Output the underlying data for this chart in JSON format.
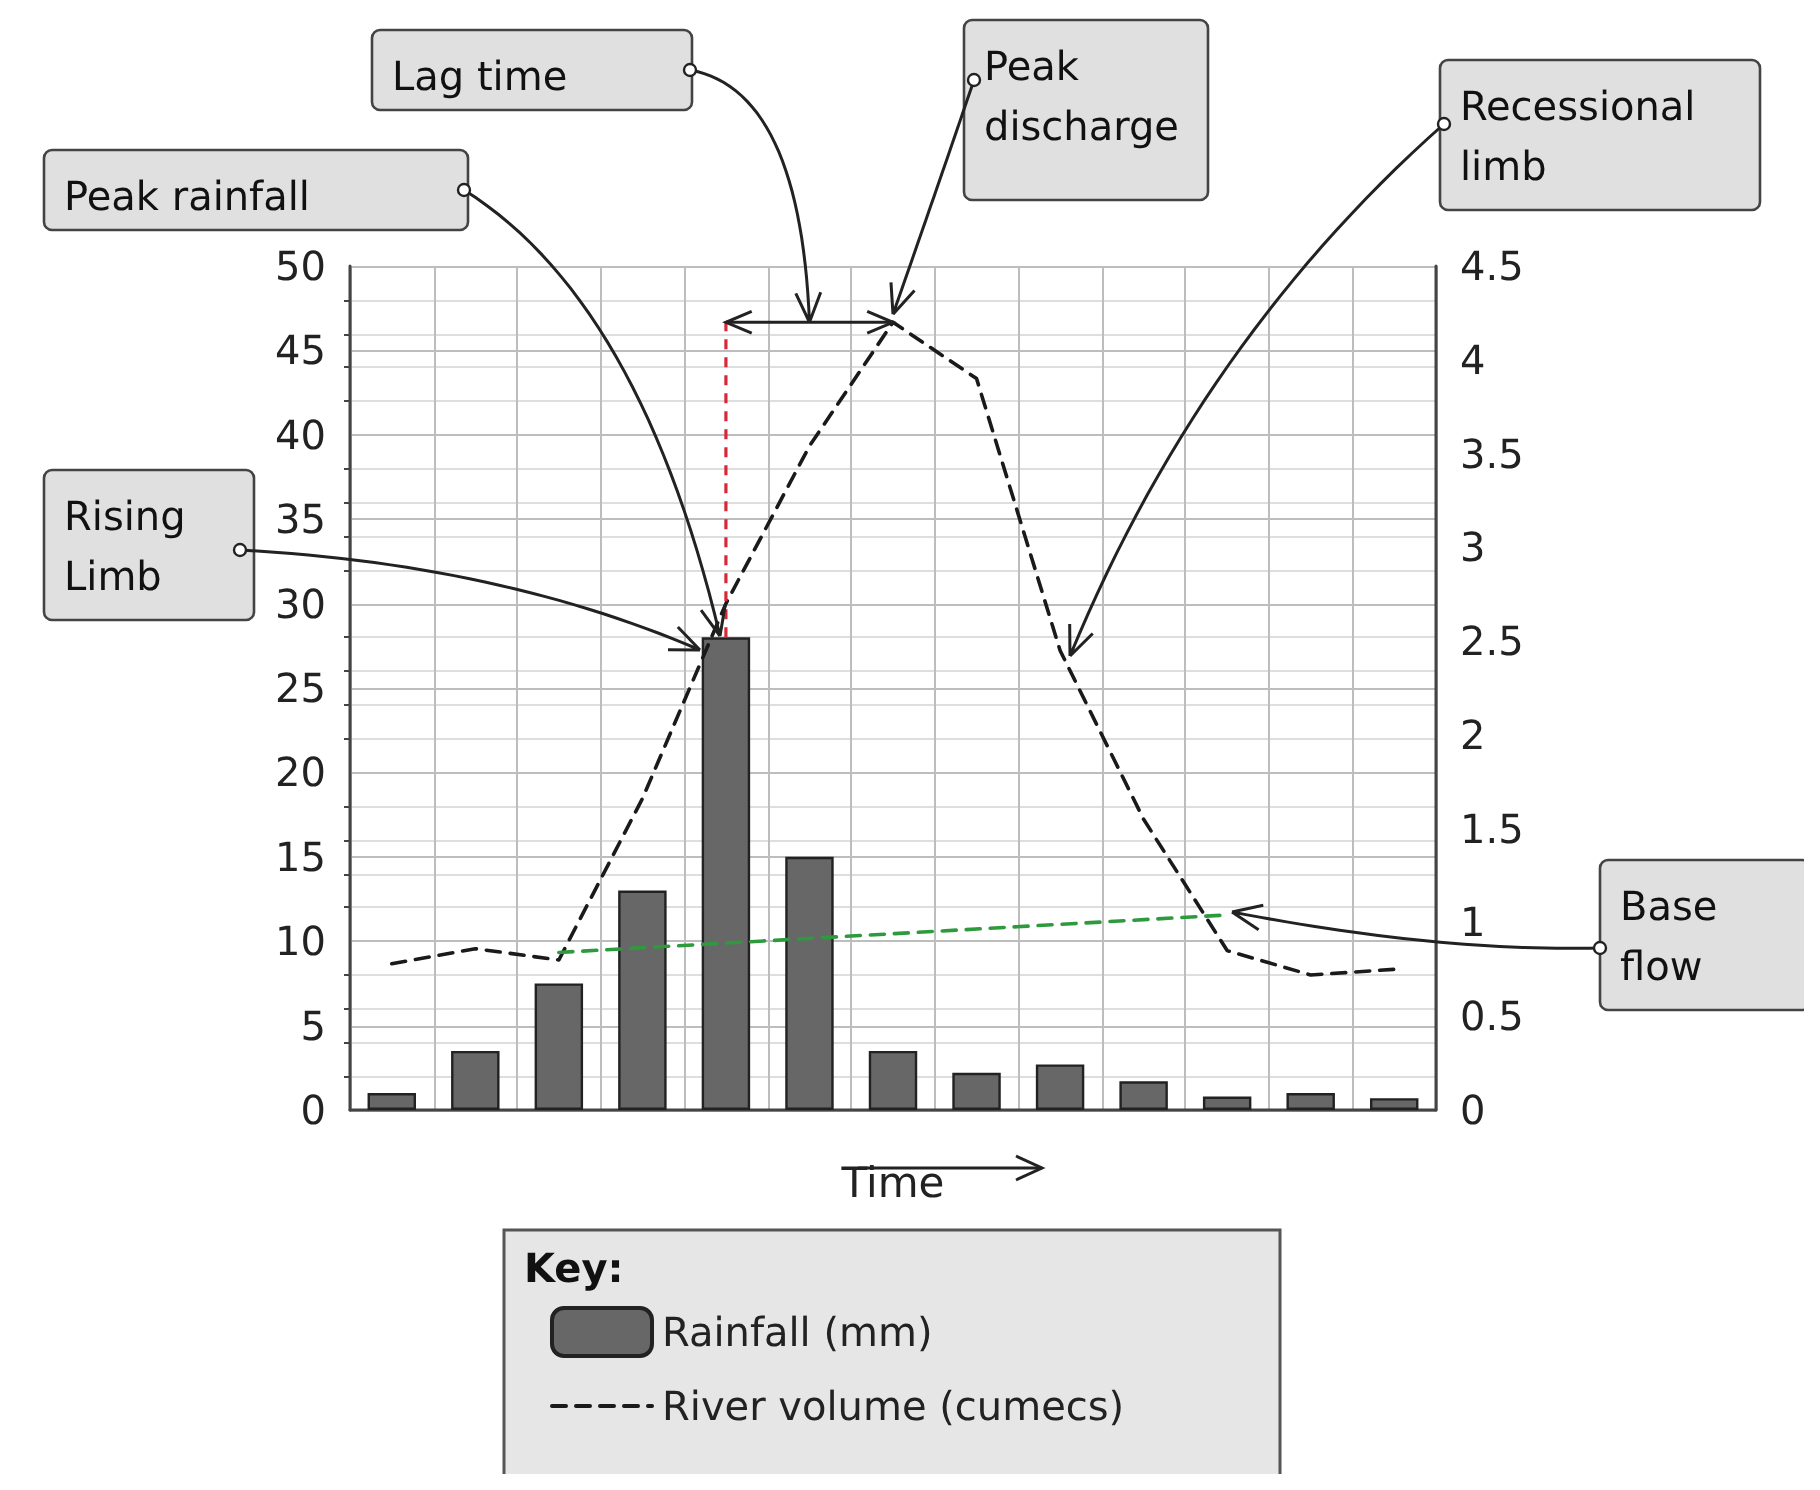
{
  "chart_data": {
    "type": "bar",
    "xlabel": "Time",
    "legend_title": "Key:",
    "legend": "bottom",
    "grid": true,
    "marker": "none",
    "categories": [
      null,
      null,
      null,
      null,
      null,
      null,
      null,
      null,
      null,
      null,
      null,
      null,
      null
    ],
    "series": [
      {
        "name": "Rainfall (mm)",
        "color": "#676767",
        "values": [
          1,
          3.5,
          7.5,
          13,
          28,
          15,
          3.5,
          2.2,
          2.7,
          1.7,
          0.8,
          1,
          0.7
        ]
      },
      {
        "name": "River volume (cumecs)",
        "type": "line",
        "axis": "y2",
        "color": "#1a1a1a",
        "line_style": "dashed",
        "values": [
          0.78,
          0.86,
          0.8,
          1.66,
          2.7,
          3.54,
          4.2,
          3.9,
          2.45,
          1.55,
          0.85,
          0.72,
          0.75
        ]
      },
      {
        "type": "line",
        "axis": "y2",
        "color": "#2e9a3e",
        "line_style": "dashed",
        "values": [
          null,
          null,
          0.84,
          null,
          null,
          null,
          null,
          null,
          null,
          null,
          1.04,
          null,
          null
        ]
      }
    ],
    "ylim": [
      0,
      50
    ],
    "yticks": [
      0,
      5,
      10,
      15,
      20,
      25,
      30,
      35,
      40,
      45,
      50
    ],
    "y2lim": [
      0,
      4.5
    ],
    "y2ticks": [
      0,
      0.5,
      1,
      1.5,
      2,
      2.5,
      3,
      3.5,
      4,
      4.5
    ],
    "annotations": [
      "Lag time",
      "Peak discharge",
      "Peak rainfall",
      "Rising Limb",
      "Recessional limb",
      "Base flow"
    ]
  }
}
